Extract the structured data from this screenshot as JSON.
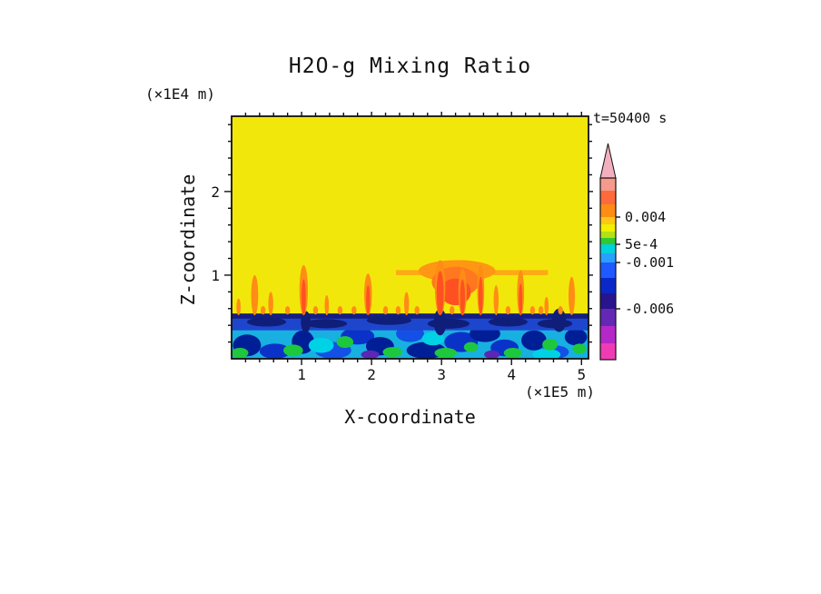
{
  "chart_data": {
    "type": "heatmap",
    "title": "H2O-g Mixing Ratio",
    "timestamp": "t=50400 s",
    "x_axis": {
      "label": "X-coordinate",
      "unit": "(×1E5 m)",
      "ticks": [
        1,
        2,
        3,
        4,
        5
      ],
      "lim": [
        0,
        5.1
      ],
      "minor_step": 0.2
    },
    "z_axis": {
      "label": "Z-coordinate",
      "unit": "(×1E4 m)",
      "ticks": [
        1,
        2
      ],
      "lim": [
        0,
        2.9
      ],
      "minor_step": 0.2
    },
    "field": {
      "background": "#f2e70a",
      "sub_layer": {
        "z0": 0,
        "z1": 0.38,
        "color": "#17b0e0"
      },
      "band": {
        "z0": 0.34,
        "z1": 0.54,
        "color": "#1e46cd"
      },
      "band_top": {
        "z0": 0.48,
        "z1": 0.54,
        "color": "#141e82"
      },
      "band_clumps": [
        {
          "x": 0.5,
          "z": 0.44,
          "rx": 0.28,
          "rz": 0.055,
          "c": "#0f1e78"
        },
        {
          "x": 1.35,
          "z": 0.42,
          "rx": 0.3,
          "rz": 0.055,
          "c": "#0f1e78"
        },
        {
          "x": 2.25,
          "z": 0.46,
          "rx": 0.32,
          "rz": 0.055,
          "c": "#0f1e78"
        },
        {
          "x": 3.1,
          "z": 0.42,
          "rx": 0.3,
          "rz": 0.06,
          "c": "#0f1e78"
        },
        {
          "x": 3.95,
          "z": 0.44,
          "rx": 0.28,
          "rz": 0.055,
          "c": "#0f1e78"
        },
        {
          "x": 4.62,
          "z": 0.42,
          "rx": 0.25,
          "rz": 0.055,
          "c": "#0f1e78"
        },
        {
          "x": 2.98,
          "z": 0.44,
          "rx": 0.09,
          "rz": 0.16,
          "c": "#0f1e78"
        },
        {
          "x": 4.68,
          "z": 0.46,
          "rx": 0.1,
          "rz": 0.14,
          "c": "#0f1e78"
        },
        {
          "x": 1.06,
          "z": 0.44,
          "rx": 0.07,
          "rz": 0.13,
          "c": "#0f1e78"
        }
      ],
      "blobs": [
        {
          "x": 0.22,
          "z": 0.16,
          "rx": 0.2,
          "rz": 0.13,
          "c": "#001e96"
        },
        {
          "x": 0.62,
          "z": 0.09,
          "rx": 0.22,
          "rz": 0.09,
          "c": "#0a32c8"
        },
        {
          "x": 1.02,
          "z": 0.2,
          "rx": 0.16,
          "rz": 0.14,
          "c": "#001e96"
        },
        {
          "x": 1.45,
          "z": 0.1,
          "rx": 0.26,
          "rz": 0.1,
          "c": "#1450e6"
        },
        {
          "x": 1.8,
          "z": 0.27,
          "rx": 0.24,
          "rz": 0.1,
          "c": "#0a32c8"
        },
        {
          "x": 2.12,
          "z": 0.15,
          "rx": 0.2,
          "rz": 0.11,
          "c": "#001e96"
        },
        {
          "x": 2.55,
          "z": 0.3,
          "rx": 0.2,
          "rz": 0.1,
          "c": "#1450e6"
        },
        {
          "x": 2.78,
          "z": 0.1,
          "rx": 0.28,
          "rz": 0.1,
          "c": "#001e96"
        },
        {
          "x": 3.28,
          "z": 0.2,
          "rx": 0.24,
          "rz": 0.12,
          "c": "#0a32c8"
        },
        {
          "x": 3.62,
          "z": 0.3,
          "rx": 0.22,
          "rz": 0.1,
          "c": "#001e96"
        },
        {
          "x": 3.9,
          "z": 0.13,
          "rx": 0.2,
          "rz": 0.1,
          "c": "#0a32c8"
        },
        {
          "x": 4.32,
          "z": 0.22,
          "rx": 0.18,
          "rz": 0.12,
          "c": "#001e96"
        },
        {
          "x": 4.62,
          "z": 0.08,
          "rx": 0.2,
          "rz": 0.08,
          "c": "#1450e6"
        },
        {
          "x": 4.92,
          "z": 0.26,
          "rx": 0.16,
          "rz": 0.1,
          "c": "#001e96"
        },
        {
          "x": 0.12,
          "z": 0.07,
          "rx": 0.12,
          "rz": 0.06,
          "c": "#1ec83c"
        },
        {
          "x": 0.88,
          "z": 0.1,
          "rx": 0.14,
          "rz": 0.07,
          "c": "#1ec83c"
        },
        {
          "x": 1.28,
          "z": 0.16,
          "rx": 0.18,
          "rz": 0.09,
          "c": "#00d2e6"
        },
        {
          "x": 1.62,
          "z": 0.2,
          "rx": 0.12,
          "rz": 0.07,
          "c": "#1ec83c"
        },
        {
          "x": 2.3,
          "z": 0.08,
          "rx": 0.14,
          "rz": 0.06,
          "c": "#1ec83c"
        },
        {
          "x": 2.88,
          "z": 0.24,
          "rx": 0.16,
          "rz": 0.08,
          "c": "#00d2e6"
        },
        {
          "x": 3.06,
          "z": 0.07,
          "rx": 0.16,
          "rz": 0.06,
          "c": "#1ec83c"
        },
        {
          "x": 3.42,
          "z": 0.14,
          "rx": 0.1,
          "rz": 0.06,
          "c": "#1ec83c"
        },
        {
          "x": 4.02,
          "z": 0.07,
          "rx": 0.13,
          "rz": 0.06,
          "c": "#1ec83c"
        },
        {
          "x": 4.5,
          "z": 0.05,
          "rx": 0.2,
          "rz": 0.07,
          "c": "#00d2e6"
        },
        {
          "x": 4.55,
          "z": 0.17,
          "rx": 0.11,
          "rz": 0.07,
          "c": "#1ec83c"
        },
        {
          "x": 4.97,
          "z": 0.12,
          "rx": 0.1,
          "rz": 0.06,
          "c": "#1ec83c"
        },
        {
          "x": 1.98,
          "z": 0.05,
          "rx": 0.13,
          "rz": 0.05,
          "c": "#5a28b4"
        },
        {
          "x": 3.72,
          "z": 0.05,
          "rx": 0.11,
          "rz": 0.05,
          "c": "#5a28b4"
        }
      ],
      "streaks": [
        {
          "x0": 2.35,
          "x1": 4.52,
          "z0": 1.0,
          "z1": 1.06,
          "c": "#ffaa14"
        }
      ],
      "clouds": [
        {
          "x": 3.22,
          "z": 1.05,
          "rx": 0.55,
          "rz": 0.13,
          "c": "#ff9614"
        },
        {
          "x": 3.2,
          "z": 0.92,
          "rx": 0.34,
          "rz": 0.18,
          "c": "#ff7820"
        },
        {
          "x": 3.2,
          "z": 0.8,
          "rx": 0.22,
          "rz": 0.16,
          "c": "#ff5023"
        }
      ],
      "plume_base": 0.52,
      "plumes": [
        {
          "x": 0.1,
          "z1": 0.72,
          "w": 0.06
        },
        {
          "x": 0.33,
          "z1": 1.0,
          "w": 0.1
        },
        {
          "x": 0.56,
          "z1": 0.8,
          "w": 0.07
        },
        {
          "x": 1.03,
          "z1": 1.12,
          "w": 0.12
        },
        {
          "x": 1.36,
          "z1": 0.76,
          "w": 0.06
        },
        {
          "x": 1.95,
          "z1": 1.02,
          "w": 0.11
        },
        {
          "x": 2.5,
          "z1": 0.8,
          "w": 0.07
        },
        {
          "x": 2.98,
          "z1": 1.18,
          "w": 0.15
        },
        {
          "x": 3.3,
          "z1": 1.08,
          "w": 0.12
        },
        {
          "x": 3.56,
          "z1": 1.12,
          "w": 0.1
        },
        {
          "x": 3.78,
          "z1": 0.88,
          "w": 0.07
        },
        {
          "x": 4.13,
          "z1": 1.06,
          "w": 0.1
        },
        {
          "x": 4.5,
          "z1": 0.74,
          "w": 0.06
        },
        {
          "x": 4.86,
          "z1": 0.98,
          "w": 0.09
        }
      ],
      "plume_color": "#ff8c14",
      "cores": [
        {
          "x": 1.03,
          "z1": 0.95,
          "w": 0.06
        },
        {
          "x": 1.95,
          "z1": 0.88,
          "w": 0.055
        },
        {
          "x": 2.98,
          "z1": 1.05,
          "w": 0.1
        },
        {
          "x": 3.3,
          "z1": 0.95,
          "w": 0.07
        },
        {
          "x": 3.56,
          "z1": 0.98,
          "w": 0.06
        },
        {
          "x": 4.13,
          "z1": 0.9,
          "w": 0.05
        }
      ],
      "core_color": "#ff5023",
      "dots": {
        "z": 0.58,
        "rx": 0.035,
        "rz": 0.05,
        "xs": [
          0.45,
          0.8,
          1.2,
          1.55,
          1.75,
          2.2,
          2.38,
          2.65,
          3.15,
          3.95,
          4.3,
          4.42,
          4.7
        ]
      }
    },
    "colorbar": {
      "arrow_color": "#f2b0bf",
      "labels": [
        "0.004",
        "5e-4",
        "-0.001",
        "-0.006"
      ],
      "segments": [
        {
          "c": "#f59a8c",
          "h": 14
        },
        {
          "c": "#ff6a3c",
          "h": 15
        },
        {
          "c": "#ff8c14",
          "h": 14,
          "label": "0.004"
        },
        {
          "c": "#ffc814",
          "h": 8
        },
        {
          "c": "#f0f000",
          "h": 8
        },
        {
          "c": "#b4e114",
          "h": 7
        },
        {
          "c": "#32c832",
          "h": 7,
          "label": "5e-4"
        },
        {
          "c": "#00d2dc",
          "h": 10
        },
        {
          "c": "#28a0ff",
          "h": 10,
          "label": "-0.001"
        },
        {
          "c": "#1e5aff",
          "h": 17
        },
        {
          "c": "#0a28c8",
          "h": 17
        },
        {
          "c": "#28148c",
          "h": 17,
          "label": "-0.006"
        },
        {
          "c": "#6428b4",
          "h": 19
        },
        {
          "c": "#b428c8",
          "h": 19
        },
        {
          "c": "#f03cb4",
          "h": 18
        }
      ]
    }
  }
}
